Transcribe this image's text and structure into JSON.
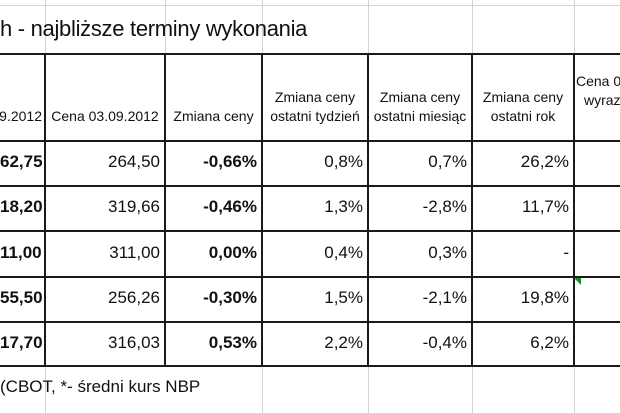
{
  "title": "h - najbliższe terminy wykonania",
  "headers": {
    "c0": ".9.2012",
    "c1": "Cena 03.09.2012",
    "c2": "Zmiana ceny",
    "c3": [
      "Zmiana ceny",
      "ostatni tydzień"
    ],
    "c4": [
      "Zmiana ceny",
      "ostatni miesiąc"
    ],
    "c5": [
      "Zmiana ceny",
      "ostatni rok"
    ],
    "c6": [
      "Cena 0",
      "wyraz"
    ]
  },
  "rows": [
    [
      "62,75",
      "264,50",
      "-0,66%",
      "0,8%",
      "0,7%",
      "26,2%"
    ],
    [
      "18,20",
      "319,66",
      "-0,46%",
      "1,3%",
      "-2,8%",
      "11,7%"
    ],
    [
      "11,00",
      "311,00",
      "0,00%",
      "0,4%",
      "0,3%",
      "-"
    ],
    [
      "55,50",
      "256,26",
      "-0,30%",
      "1,5%",
      "-2,1%",
      "19,8%"
    ],
    [
      "17,70",
      "316,03",
      "0,53%",
      "2,2%",
      "-0,4%",
      "6,2%"
    ]
  ],
  "footnote": "(CBOT, *- średni kurs NBP",
  "colors": {
    "grid": "#d4d4d4",
    "border": "#1a1a1a",
    "comment_marker": "#1e8a2e"
  }
}
